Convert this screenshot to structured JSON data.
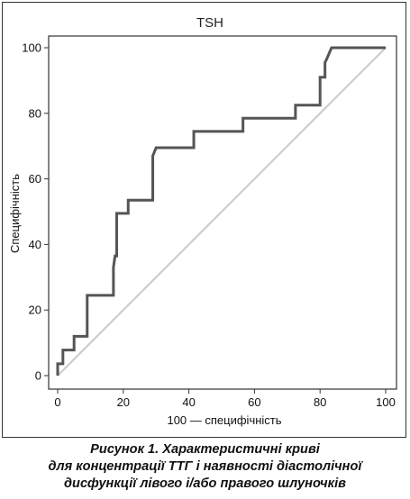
{
  "chart_data": {
    "type": "line",
    "title": "TSH",
    "xlabel": "100 — специфічність",
    "ylabel": "Специфічність",
    "xlim": [
      0,
      100
    ],
    "ylim": [
      0,
      100
    ],
    "xticks": [
      0,
      20,
      40,
      60,
      80,
      100
    ],
    "yticks": [
      0,
      20,
      40,
      60,
      80,
      100
    ],
    "grid": false,
    "series": [
      {
        "color": "#555555",
        "points": [
          [
            0,
            0
          ],
          [
            0,
            3.6
          ],
          [
            1.6,
            3.6
          ],
          [
            1.6,
            7.8
          ],
          [
            5,
            7.8
          ],
          [
            5,
            12
          ],
          [
            9,
            12
          ],
          [
            9,
            24.5
          ],
          [
            17,
            24.5
          ],
          [
            17,
            33
          ],
          [
            17.5,
            36.5
          ],
          [
            18,
            36.5
          ],
          [
            18,
            49.5
          ],
          [
            21.5,
            49.5
          ],
          [
            21.5,
            53.5
          ],
          [
            29,
            53.5
          ],
          [
            29,
            67
          ],
          [
            30,
            69.5
          ],
          [
            41.5,
            69.5
          ],
          [
            41.5,
            74.5
          ],
          [
            56.5,
            74.5
          ],
          [
            56.5,
            78.5
          ],
          [
            72.5,
            78.5
          ],
          [
            72.5,
            82.5
          ],
          [
            80,
            82.5
          ],
          [
            80,
            91
          ],
          [
            81.5,
            91
          ],
          [
            81.5,
            95.5
          ],
          [
            82,
            96.5
          ],
          [
            83.5,
            100
          ],
          [
            100,
            100
          ]
        ]
      },
      {
        "color": "#cccccc",
        "points": [
          [
            0,
            0
          ],
          [
            100,
            100
          ]
        ]
      }
    ]
  },
  "caption": {
    "line1": "Рисунок 1.  Характеристичні криві",
    "line2": "для концентрації ТТГ і наявності діастолічної",
    "line3": "дисфункції лівого і/або правого шлуночків"
  }
}
